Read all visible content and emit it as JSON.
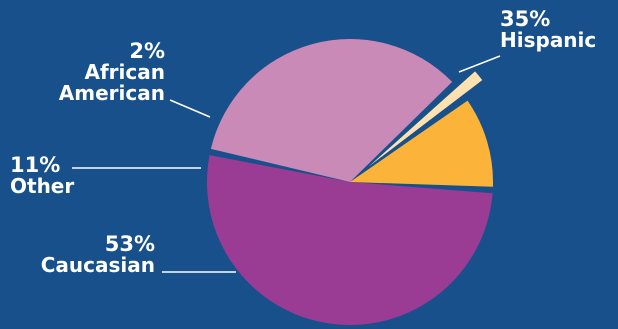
{
  "chart_data": {
    "type": "pie",
    "slices": [
      {
        "name": "Hispanic",
        "value": 35,
        "value_label": "35%",
        "name_lines": [
          "Hispanic"
        ],
        "color": "#c98ab8"
      },
      {
        "name": "African American",
        "value": 2,
        "value_label": "2%",
        "name_lines": [
          "African",
          "American"
        ],
        "color": "#fde2b0"
      },
      {
        "name": "Other",
        "value": 11,
        "value_label": "11%",
        "name_lines": [
          "Other"
        ],
        "color": "#fbb33a"
      },
      {
        "name": "Caucasian",
        "value": 53,
        "value_label": "53%",
        "name_lines": [
          "Caucasian"
        ],
        "color": "#9a3c94"
      }
    ]
  },
  "colors": {
    "background": "#17508a",
    "label_text": "#ffffff",
    "leader_line": "#ffffff"
  }
}
